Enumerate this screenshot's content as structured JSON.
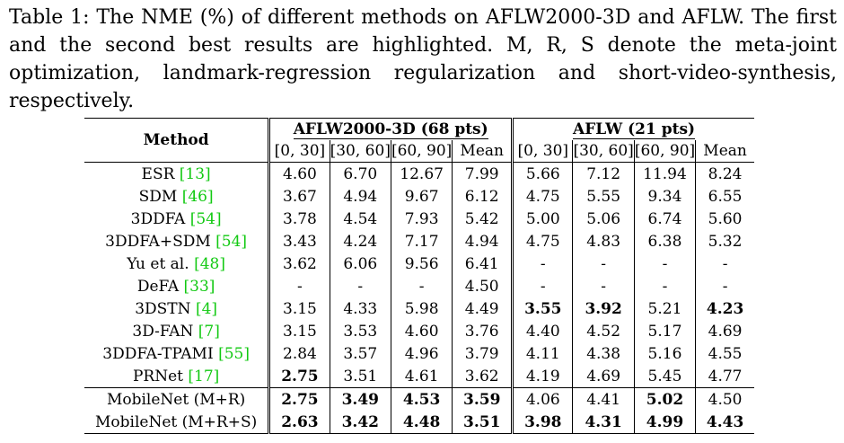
{
  "caption": "Table 1: The NME (%) of different methods on AFLW2000-3D and AFLW. The first and the second best results are highlighted. M, R, S denote the meta-joint optimization, landmark-regression regularization and short-video-synthesis, respectively.",
  "header": {
    "method": "Method",
    "group1": "AFLW2000-3D (68 pts)",
    "group2": "AFLW (21 pts)",
    "subcols": [
      "[0, 30]",
      "[30, 60]",
      "[60, 90]",
      "Mean",
      "[0, 30]",
      "[30, 60]",
      "[60, 90]",
      "Mean"
    ]
  },
  "rows": [
    {
      "name": "ESR",
      "cite": "[13]",
      "v": [
        "4.60",
        "6.70",
        "12.67",
        "7.99",
        "5.66",
        "7.12",
        "11.94",
        "8.24"
      ],
      "bold": []
    },
    {
      "name": "SDM",
      "cite": "[46]",
      "v": [
        "3.67",
        "4.94",
        "9.67",
        "6.12",
        "4.75",
        "5.55",
        "9.34",
        "6.55"
      ],
      "bold": []
    },
    {
      "name": "3DDFA",
      "cite": "[54]",
      "v": [
        "3.78",
        "4.54",
        "7.93",
        "5.42",
        "5.00",
        "5.06",
        "6.74",
        "5.60"
      ],
      "bold": []
    },
    {
      "name": "3DDFA+SDM",
      "cite": "[54]",
      "v": [
        "3.43",
        "4.24",
        "7.17",
        "4.94",
        "4.75",
        "4.83",
        "6.38",
        "5.32"
      ],
      "bold": []
    },
    {
      "name": "Yu et al.",
      "cite": "[48]",
      "v": [
        "3.62",
        "6.06",
        "9.56",
        "6.41",
        "-",
        "-",
        "-",
        "-"
      ],
      "bold": []
    },
    {
      "name": "DeFA",
      "cite": "[33]",
      "v": [
        "-",
        "-",
        "-",
        "4.50",
        "-",
        "-",
        "-",
        "-"
      ],
      "bold": []
    },
    {
      "name": "3DSTN",
      "cite": "[4]",
      "v": [
        "3.15",
        "4.33",
        "5.98",
        "4.49",
        "3.55",
        "3.92",
        "5.21",
        "4.23"
      ],
      "bold": [
        4,
        5,
        7
      ]
    },
    {
      "name": "3D-FAN",
      "cite": "[7]",
      "v": [
        "3.15",
        "3.53",
        "4.60",
        "3.76",
        "4.40",
        "4.52",
        "5.17",
        "4.69"
      ],
      "bold": []
    },
    {
      "name": "3DDFA-TPAMI",
      "cite": "[55]",
      "v": [
        "2.84",
        "3.57",
        "4.96",
        "3.79",
        "4.11",
        "4.38",
        "5.16",
        "4.55"
      ],
      "bold": []
    },
    {
      "name": "PRNet",
      "cite": "[17]",
      "v": [
        "2.75",
        "3.51",
        "4.61",
        "3.62",
        "4.19",
        "4.69",
        "5.45",
        "4.77"
      ],
      "bold": [
        0
      ]
    }
  ],
  "ours": [
    {
      "name": "MobileNet (M+R)",
      "v": [
        "2.75",
        "3.49",
        "4.53",
        "3.59",
        "4.06",
        "4.41",
        "5.02",
        "4.50"
      ],
      "bold": [
        0,
        1,
        2,
        3,
        6
      ]
    },
    {
      "name": "MobileNet (M+R+S)",
      "v": [
        "2.63",
        "3.42",
        "4.48",
        "3.51",
        "3.98",
        "4.31",
        "4.99",
        "4.43"
      ],
      "bold": [
        0,
        1,
        2,
        3,
        4,
        5,
        6,
        7
      ]
    }
  ]
}
